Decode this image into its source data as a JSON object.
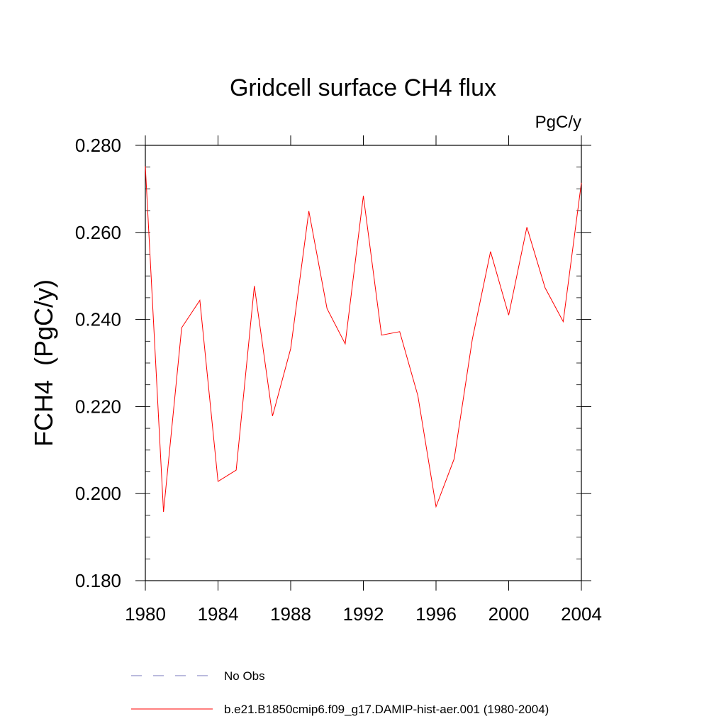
{
  "chart_data": {
    "type": "line",
    "title": "Gridcell surface CH4 flux",
    "units_label": "PgC/y",
    "xlabel": "",
    "ylabel": "FCH4  (PgC/y)",
    "xlim": [
      1980,
      2004
    ],
    "ylim": [
      0.18,
      0.28
    ],
    "x_ticks": [
      1980,
      1984,
      1988,
      1992,
      1996,
      2000,
      2004
    ],
    "x_tick_labels": [
      "1980",
      "1984",
      "1988",
      "1992",
      "1996",
      "2000",
      "2004"
    ],
    "y_ticks": [
      0.18,
      0.2,
      0.22,
      0.24,
      0.26,
      0.28
    ],
    "y_tick_labels": [
      "0.180",
      "0.200",
      "0.220",
      "0.240",
      "0.260",
      "0.280"
    ],
    "grid": false,
    "legend_position": "bottom",
    "legend": [
      {
        "label": "No Obs",
        "color": "#7777bb",
        "style": "dashed"
      },
      {
        "label": "b.e21.B1850cmip6.f09_g17.DAMIP-hist-aer.001 (1980-2004)",
        "color": "#ff0000",
        "style": "solid"
      }
    ],
    "series": [
      {
        "name": "b.e21.B1850cmip6.f09_g17.DAMIP-hist-aer.001 (1980-2004)",
        "color": "#ff0000",
        "x": [
          1980,
          1981,
          1982,
          1983,
          1984,
          1985,
          1986,
          1987,
          1988,
          1989,
          1990,
          1991,
          1992,
          1993,
          1994,
          1995,
          1996,
          1997,
          1998,
          1999,
          2000,
          2001,
          2002,
          2003,
          2004
        ],
        "y": [
          0.2752,
          0.1958,
          0.2381,
          0.2444,
          0.2028,
          0.2054,
          0.2477,
          0.2178,
          0.2333,
          0.2649,
          0.2425,
          0.2344,
          0.2684,
          0.2364,
          0.2372,
          0.2225,
          0.197,
          0.208,
          0.2355,
          0.2556,
          0.241,
          0.2612,
          0.2473,
          0.2395,
          0.2714
        ]
      }
    ]
  }
}
